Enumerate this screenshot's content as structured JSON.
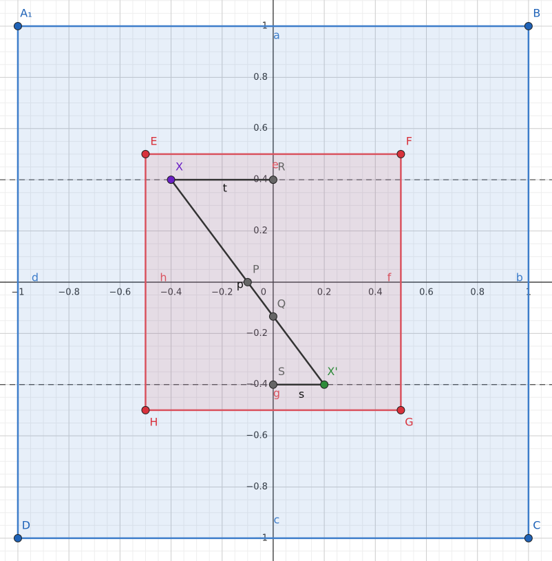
{
  "axes": {
    "xlim": [
      -1.07,
      1.092
    ],
    "ylim": [
      -1.089,
      1.102
    ],
    "xticks": [
      {
        "value": -1,
        "label": "−1"
      },
      {
        "value": -0.8,
        "label": "−0.8"
      },
      {
        "value": -0.6,
        "label": "−0.6"
      },
      {
        "value": -0.4,
        "label": "−0.4"
      },
      {
        "value": -0.2,
        "label": "−0.2"
      },
      0,
      0.2,
      0.4,
      0.6,
      0.8,
      1
    ],
    "yticks": [
      {
        "value": -1,
        "label": "−1"
      },
      {
        "value": -0.8,
        "label": "−0.8"
      },
      {
        "value": -0.6,
        "label": "−0.6"
      },
      {
        "value": -0.4,
        "label": "−0.4"
      },
      {
        "value": -0.2,
        "label": "−0.2"
      },
      0.2,
      0.4,
      0.6,
      0.8,
      1
    ]
  },
  "points": [
    {
      "label": "A₁",
      "x": -1,
      "y": 1,
      "color": "#1f63b8"
    },
    {
      "label": "B",
      "x": 1,
      "y": 1,
      "color": "#1f63b8"
    },
    {
      "label": "C",
      "x": 1,
      "y": -1,
      "color": "#1f63b8"
    },
    {
      "label": "D",
      "x": -1,
      "y": -1,
      "color": "#1f63b8"
    },
    {
      "label": "E",
      "x": -0.5,
      "y": 0.5,
      "color": "#d8323c"
    },
    {
      "label": "F",
      "x": 0.5,
      "y": 0.5,
      "color": "#d8323c"
    },
    {
      "label": "G",
      "x": 0.5,
      "y": -0.5,
      "color": "#d8323c"
    },
    {
      "label": "H",
      "x": -0.5,
      "y": -0.5,
      "color": "#d8323c"
    },
    {
      "label": "X",
      "x": -0.4,
      "y": 0.4,
      "color": "#6a1fc4"
    },
    {
      "label": "R",
      "x": 0,
      "y": 0.4,
      "color": "#666666"
    },
    {
      "label": "P",
      "x": -0.1,
      "y": 0,
      "color": "#666666"
    },
    {
      "label": "Q",
      "x": 0,
      "y": -0.134,
      "color": "#666666"
    },
    {
      "label": "S",
      "x": 0,
      "y": -0.4,
      "color": "#666666"
    },
    {
      "label": "X'",
      "x": 0.2,
      "y": -0.4,
      "color": "#2e8b3a"
    }
  ],
  "square_color": "#3d7dca",
  "inner_color": "#d9525e",
  "side_labels": [
    "a",
    "b",
    "c",
    "d",
    "e",
    "f",
    "g",
    "h"
  ],
  "segment_labels": [
    "t",
    "s",
    "p"
  ],
  "dashed_lines": [
    0.4,
    -0.4
  ]
}
